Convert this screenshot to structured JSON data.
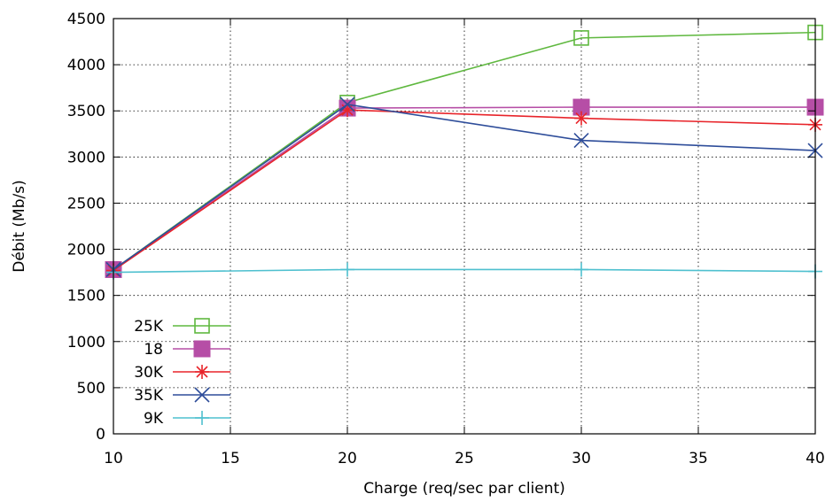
{
  "chart_data": {
    "type": "line",
    "xlabel": "Charge (req/sec par client)",
    "ylabel": "Débit (Mb/s)",
    "xlim": [
      10,
      40
    ],
    "ylim": [
      0,
      4500
    ],
    "xticks": [
      10,
      15,
      20,
      25,
      30,
      35,
      40
    ],
    "yticks": [
      0,
      500,
      1000,
      1500,
      2000,
      2500,
      3000,
      3500,
      4000,
      4500
    ],
    "grid": true,
    "legend_position": "bottom-left",
    "x": [
      10,
      20,
      30,
      40
    ],
    "series": [
      {
        "name": "25K",
        "color": "#5fb83f",
        "marker": "open-square",
        "values": [
          1780,
          3590,
          4290,
          4350
        ]
      },
      {
        "name": "18",
        "color": "#b64ea6",
        "marker": "filled-square",
        "values": [
          1780,
          3530,
          3540,
          3540
        ]
      },
      {
        "name": "30K",
        "color": "#e8242a",
        "marker": "asterisk",
        "values": [
          1770,
          3510,
          3420,
          3350
        ]
      },
      {
        "name": "35K",
        "color": "#2e4d9a",
        "marker": "cross",
        "values": [
          1780,
          3570,
          3180,
          3070
        ]
      },
      {
        "name": "9K",
        "color": "#4fc0cf",
        "marker": "plus",
        "values": [
          1750,
          1780,
          1780,
          1760
        ]
      }
    ]
  }
}
